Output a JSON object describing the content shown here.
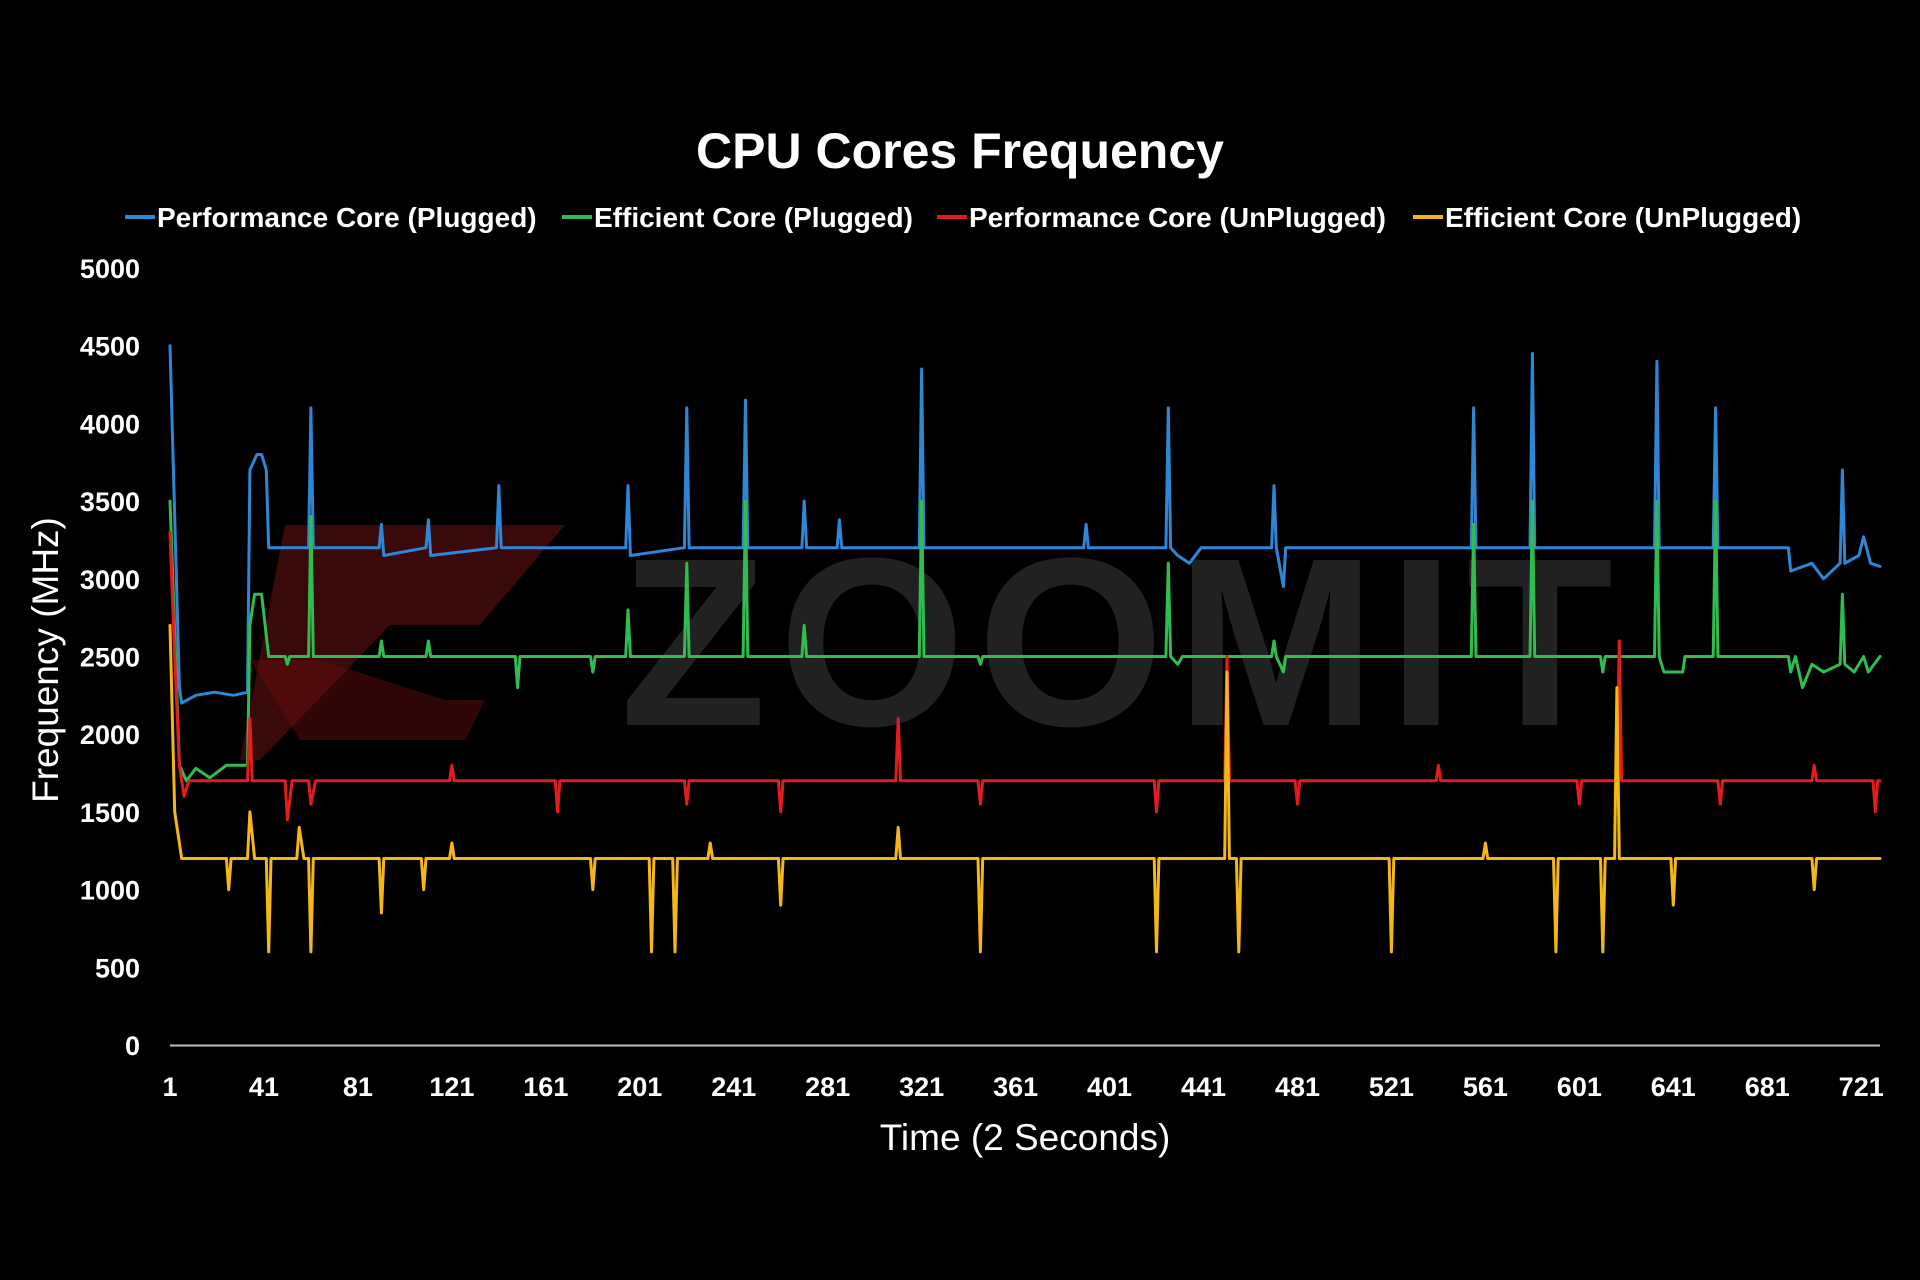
{
  "watermark": "ZOOMIT",
  "chart_data": {
    "type": "line",
    "title": "CPU Cores Frequency",
    "xlabel": "Time (2 Seconds)",
    "ylabel": "Frequency (MHz)",
    "xlim": [
      1,
      729
    ],
    "ylim": [
      0,
      5000
    ],
    "x_ticks": [
      1,
      41,
      81,
      121,
      161,
      201,
      241,
      281,
      321,
      361,
      401,
      441,
      481,
      521,
      561,
      601,
      641,
      681,
      721
    ],
    "y_ticks": [
      0,
      500,
      1000,
      1500,
      2000,
      2500,
      3000,
      3500,
      4000,
      4500,
      5000
    ],
    "grid": false,
    "legend": "top",
    "series": [
      {
        "name": "Performance Core (Plugged)",
        "color": "#2e86d6",
        "points": [
          [
            1,
            4500
          ],
          [
            5,
            2300
          ],
          [
            6,
            2200
          ],
          [
            12,
            2250
          ],
          [
            20,
            2270
          ],
          [
            28,
            2250
          ],
          [
            34,
            2270
          ],
          [
            35,
            3700
          ],
          [
            38,
            3800
          ],
          [
            40,
            3800
          ],
          [
            42,
            3700
          ],
          [
            43,
            3200
          ],
          [
            60,
            3200
          ],
          [
            61,
            4100
          ],
          [
            62,
            3200
          ],
          [
            90,
            3200
          ],
          [
            91,
            3350
          ],
          [
            92,
            3150
          ],
          [
            110,
            3200
          ],
          [
            111,
            3380
          ],
          [
            112,
            3150
          ],
          [
            140,
            3200
          ],
          [
            141,
            3600
          ],
          [
            142,
            3200
          ],
          [
            180,
            3200
          ],
          [
            195,
            3200
          ],
          [
            196,
            3600
          ],
          [
            197,
            3150
          ],
          [
            220,
            3200
          ],
          [
            221,
            4100
          ],
          [
            222,
            3200
          ],
          [
            245,
            3200
          ],
          [
            246,
            4150
          ],
          [
            247,
            3200
          ],
          [
            270,
            3200
          ],
          [
            271,
            3500
          ],
          [
            272,
            3200
          ],
          [
            285,
            3200
          ],
          [
            286,
            3380
          ],
          [
            287,
            3200
          ],
          [
            320,
            3200
          ],
          [
            321,
            4350
          ],
          [
            322,
            3200
          ],
          [
            390,
            3200
          ],
          [
            391,
            3350
          ],
          [
            392,
            3200
          ],
          [
            425,
            3200
          ],
          [
            426,
            4100
          ],
          [
            427,
            3200
          ],
          [
            430,
            3150
          ],
          [
            435,
            3100
          ],
          [
            440,
            3200
          ],
          [
            470,
            3200
          ],
          [
            471,
            3600
          ],
          [
            472,
            3200
          ],
          [
            475,
            2950
          ],
          [
            476,
            3200
          ],
          [
            555,
            3200
          ],
          [
            556,
            4100
          ],
          [
            557,
            3200
          ],
          [
            580,
            3200
          ],
          [
            581,
            4450
          ],
          [
            582,
            3200
          ],
          [
            633,
            3200
          ],
          [
            634,
            4400
          ],
          [
            635,
            3200
          ],
          [
            658,
            3200
          ],
          [
            659,
            4100
          ],
          [
            660,
            3200
          ],
          [
            690,
            3200
          ],
          [
            691,
            3050
          ],
          [
            700,
            3100
          ],
          [
            705,
            3000
          ],
          [
            712,
            3100
          ],
          [
            713,
            3700
          ],
          [
            714,
            3100
          ],
          [
            720,
            3150
          ],
          [
            722,
            3270
          ],
          [
            725,
            3100
          ],
          [
            729,
            3080
          ]
        ]
      },
      {
        "name": "Efficient Core (Plugged)",
        "color": "#2ebd4e",
        "points": [
          [
            1,
            3500
          ],
          [
            5,
            1800
          ],
          [
            8,
            1700
          ],
          [
            12,
            1780
          ],
          [
            18,
            1720
          ],
          [
            25,
            1800
          ],
          [
            34,
            1800
          ],
          [
            35,
            2700
          ],
          [
            37,
            2900
          ],
          [
            40,
            2900
          ],
          [
            43,
            2500
          ],
          [
            50,
            2500
          ],
          [
            51,
            2450
          ],
          [
            52,
            2500
          ],
          [
            60,
            2500
          ],
          [
            61,
            3400
          ],
          [
            62,
            2500
          ],
          [
            90,
            2500
          ],
          [
            91,
            2600
          ],
          [
            92,
            2500
          ],
          [
            110,
            2500
          ],
          [
            111,
            2600
          ],
          [
            112,
            2500
          ],
          [
            148,
            2500
          ],
          [
            149,
            2300
          ],
          [
            150,
            2500
          ],
          [
            180,
            2500
          ],
          [
            181,
            2400
          ],
          [
            182,
            2500
          ],
          [
            195,
            2500
          ],
          [
            196,
            2800
          ],
          [
            197,
            2500
          ],
          [
            220,
            2500
          ],
          [
            221,
            3100
          ],
          [
            222,
            2500
          ],
          [
            245,
            2500
          ],
          [
            246,
            3500
          ],
          [
            247,
            2500
          ],
          [
            270,
            2500
          ],
          [
            271,
            2700
          ],
          [
            272,
            2500
          ],
          [
            320,
            2500
          ],
          [
            321,
            3500
          ],
          [
            322,
            2500
          ],
          [
            345,
            2500
          ],
          [
            346,
            2450
          ],
          [
            347,
            2500
          ],
          [
            425,
            2500
          ],
          [
            426,
            3100
          ],
          [
            427,
            2500
          ],
          [
            430,
            2450
          ],
          [
            432,
            2500
          ],
          [
            470,
            2500
          ],
          [
            471,
            2600
          ],
          [
            472,
            2500
          ],
          [
            475,
            2400
          ],
          [
            476,
            2500
          ],
          [
            555,
            2500
          ],
          [
            556,
            3350
          ],
          [
            557,
            2500
          ],
          [
            580,
            2500
          ],
          [
            581,
            3500
          ],
          [
            582,
            2500
          ],
          [
            610,
            2500
          ],
          [
            611,
            2400
          ],
          [
            612,
            2500
          ],
          [
            633,
            2500
          ],
          [
            634,
            3500
          ],
          [
            635,
            2500
          ],
          [
            637,
            2400
          ],
          [
            645,
            2400
          ],
          [
            646,
            2500
          ],
          [
            658,
            2500
          ],
          [
            659,
            3500
          ],
          [
            660,
            2500
          ],
          [
            690,
            2500
          ],
          [
            691,
            2400
          ],
          [
            693,
            2500
          ],
          [
            696,
            2300
          ],
          [
            700,
            2450
          ],
          [
            705,
            2400
          ],
          [
            712,
            2450
          ],
          [
            713,
            2900
          ],
          [
            714,
            2450
          ],
          [
            718,
            2400
          ],
          [
            722,
            2500
          ],
          [
            724,
            2400
          ],
          [
            729,
            2500
          ]
        ]
      },
      {
        "name": "Performance Core (UnPlugged)",
        "color": "#e31c1c",
        "points": [
          [
            1,
            3300
          ],
          [
            3,
            2500
          ],
          [
            5,
            1800
          ],
          [
            7,
            1600
          ],
          [
            9,
            1700
          ],
          [
            34,
            1700
          ],
          [
            35,
            2100
          ],
          [
            36,
            1700
          ],
          [
            50,
            1700
          ],
          [
            51,
            1450
          ],
          [
            53,
            1700
          ],
          [
            60,
            1700
          ],
          [
            61,
            1550
          ],
          [
            63,
            1700
          ],
          [
            120,
            1700
          ],
          [
            121,
            1800
          ],
          [
            122,
            1700
          ],
          [
            165,
            1700
          ],
          [
            166,
            1500
          ],
          [
            167,
            1700
          ],
          [
            220,
            1700
          ],
          [
            221,
            1550
          ],
          [
            222,
            1700
          ],
          [
            260,
            1700
          ],
          [
            261,
            1500
          ],
          [
            262,
            1700
          ],
          [
            310,
            1700
          ],
          [
            311,
            2100
          ],
          [
            312,
            1700
          ],
          [
            345,
            1700
          ],
          [
            346,
            1550
          ],
          [
            347,
            1700
          ],
          [
            420,
            1700
          ],
          [
            421,
            1500
          ],
          [
            422,
            1700
          ],
          [
            450,
            1700
          ],
          [
            451,
            2500
          ],
          [
            452,
            1700
          ],
          [
            480,
            1700
          ],
          [
            481,
            1550
          ],
          [
            482,
            1700
          ],
          [
            540,
            1700
          ],
          [
            541,
            1800
          ],
          [
            542,
            1700
          ],
          [
            600,
            1700
          ],
          [
            601,
            1550
          ],
          [
            602,
            1700
          ],
          [
            617,
            1700
          ],
          [
            618,
            2600
          ],
          [
            619,
            1700
          ],
          [
            660,
            1700
          ],
          [
            661,
            1550
          ],
          [
            662,
            1700
          ],
          [
            700,
            1700
          ],
          [
            701,
            1800
          ],
          [
            702,
            1700
          ],
          [
            726,
            1700
          ],
          [
            727,
            1500
          ],
          [
            728,
            1700
          ],
          [
            729,
            1700
          ]
        ]
      },
      {
        "name": "Efficient Core (UnPlugged)",
        "color": "#f5b717",
        "points": [
          [
            1,
            2700
          ],
          [
            3,
            1500
          ],
          [
            6,
            1200
          ],
          [
            25,
            1200
          ],
          [
            26,
            1000
          ],
          [
            27,
            1200
          ],
          [
            34,
            1200
          ],
          [
            35,
            1500
          ],
          [
            37,
            1200
          ],
          [
            42,
            1200
          ],
          [
            43,
            600
          ],
          [
            44,
            1200
          ],
          [
            55,
            1200
          ],
          [
            56,
            1400
          ],
          [
            58,
            1200
          ],
          [
            60,
            1200
          ],
          [
            61,
            600
          ],
          [
            62,
            1200
          ],
          [
            90,
            1200
          ],
          [
            91,
            850
          ],
          [
            92,
            1200
          ],
          [
            108,
            1200
          ],
          [
            109,
            1000
          ],
          [
            110,
            1200
          ],
          [
            120,
            1200
          ],
          [
            121,
            1300
          ],
          [
            122,
            1200
          ],
          [
            180,
            1200
          ],
          [
            181,
            1000
          ],
          [
            182,
            1200
          ],
          [
            205,
            1200
          ],
          [
            206,
            600
          ],
          [
            207,
            1200
          ],
          [
            215,
            1200
          ],
          [
            216,
            600
          ],
          [
            217,
            1200
          ],
          [
            230,
            1200
          ],
          [
            231,
            1300
          ],
          [
            232,
            1200
          ],
          [
            260,
            1200
          ],
          [
            261,
            900
          ],
          [
            262,
            1200
          ],
          [
            310,
            1200
          ],
          [
            311,
            1400
          ],
          [
            312,
            1200
          ],
          [
            345,
            1200
          ],
          [
            346,
            600
          ],
          [
            347,
            1200
          ],
          [
            420,
            1200
          ],
          [
            421,
            600
          ],
          [
            422,
            1200
          ],
          [
            450,
            1200
          ],
          [
            451,
            2400
          ],
          [
            452,
            1200
          ],
          [
            455,
            1200
          ],
          [
            456,
            600
          ],
          [
            457,
            1200
          ],
          [
            520,
            1200
          ],
          [
            521,
            600
          ],
          [
            522,
            1200
          ],
          [
            560,
            1200
          ],
          [
            561,
            1300
          ],
          [
            562,
            1200
          ],
          [
            590,
            1200
          ],
          [
            591,
            600
          ],
          [
            592,
            1200
          ],
          [
            610,
            1200
          ],
          [
            611,
            600
          ],
          [
            612,
            1200
          ],
          [
            616,
            1200
          ],
          [
            617,
            2300
          ],
          [
            618,
            1200
          ],
          [
            640,
            1200
          ],
          [
            641,
            900
          ],
          [
            642,
            1200
          ],
          [
            700,
            1200
          ],
          [
            701,
            1000
          ],
          [
            702,
            1200
          ],
          [
            729,
            1200
          ]
        ]
      }
    ]
  }
}
